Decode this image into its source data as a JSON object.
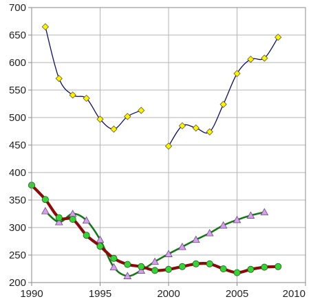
{
  "chart_data": {
    "type": "line",
    "title": "",
    "xlabel": "",
    "ylabel": "",
    "xlim": [
      1990,
      2010
    ],
    "ylim": [
      200,
      700
    ],
    "x_ticks": [
      "1990",
      "1995",
      "2000",
      "2005",
      "2010"
    ],
    "y_ticks": [
      "200",
      "250",
      "300",
      "350",
      "400",
      "450",
      "500",
      "550",
      "600",
      "650",
      "700"
    ],
    "grid": true,
    "legend": "none",
    "series": [
      {
        "key": "upper-series",
        "marker": "diamond",
        "marker_color": "#FFF200",
        "line_color": "#0B0B6B",
        "segments": [
          {
            "x": [
              1991,
              1992,
              1993,
              1994,
              1995,
              1996,
              1997,
              1998
            ],
            "y": [
              665,
              571,
              541,
              535,
              497,
              479,
              502,
              513
            ]
          },
          {
            "x": [
              2000,
              2001,
              2002,
              2003,
              2004,
              2005,
              2006,
              2007,
              2008
            ],
            "y": [
              448,
              485,
              481,
              474,
              524,
              580,
              606,
              608,
              646
            ]
          }
        ]
      },
      {
        "key": "triangle-series",
        "marker": "triangle",
        "marker_color": "#D79DF0",
        "line_color": "#137A13",
        "segments": [
          {
            "x": [
              1991,
              1992,
              1993,
              1994,
              1995,
              1996,
              1997,
              1998,
              1999,
              2000,
              2001,
              2002,
              2003,
              2004,
              2005,
              2006,
              2007
            ],
            "y": [
              330,
              310,
              325,
              313,
              278,
              228,
              212,
              222,
              238,
              252,
              265,
              278,
              290,
              304,
              314,
              322,
              328
            ]
          }
        ]
      },
      {
        "key": "circle-series",
        "marker": "circle",
        "marker_color": "#35D435",
        "line_color": "#8B0A0A",
        "segments": [
          {
            "x": [
              1990,
              1991,
              1992,
              1993,
              1994,
              1995,
              1996,
              1997,
              1998,
              1999,
              2000,
              2001,
              2002,
              2003,
              2004,
              2005,
              2006,
              2007,
              2008
            ],
            "y": [
              377,
              351,
              318,
              315,
              286,
              266,
              244,
              233,
              229,
              222,
              224,
              229,
              234,
              234,
              225,
              218,
              224,
              228,
              229
            ]
          }
        ]
      }
    ]
  }
}
